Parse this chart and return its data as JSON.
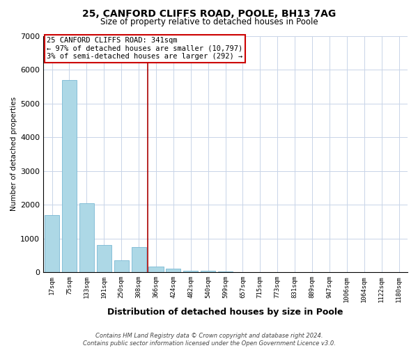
{
  "title1": "25, CANFORD CLIFFS ROAD, POOLE, BH13 7AG",
  "title2": "Size of property relative to detached houses in Poole",
  "xlabel": "Distribution of detached houses by size in Poole",
  "ylabel": "Number of detached properties",
  "categories": [
    "17sqm",
    "75sqm",
    "133sqm",
    "191sqm",
    "250sqm",
    "308sqm",
    "366sqm",
    "424sqm",
    "482sqm",
    "540sqm",
    "599sqm",
    "657sqm",
    "715sqm",
    "773sqm",
    "831sqm",
    "889sqm",
    "947sqm",
    "1006sqm",
    "1064sqm",
    "1122sqm",
    "1180sqm"
  ],
  "values": [
    1700,
    5700,
    2050,
    800,
    350,
    750,
    175,
    100,
    55,
    35,
    20,
    10,
    5,
    2,
    1,
    1,
    0,
    0,
    0,
    0,
    0
  ],
  "bar_color": "#add8e6",
  "bar_edge_color": "#7ab8d4",
  "vline_color": "#aa0000",
  "annotation_line1": "25 CANFORD CLIFFS ROAD: 341sqm",
  "annotation_line2": "← 97% of detached houses are smaller (10,797)",
  "annotation_line3": "3% of semi-detached houses are larger (292) →",
  "annotation_box_color": "#ffffff",
  "annotation_box_edge": "#cc0000",
  "ylim": [
    0,
    7000
  ],
  "yticks": [
    0,
    1000,
    2000,
    3000,
    4000,
    5000,
    6000,
    7000
  ],
  "footer": "Contains HM Land Registry data © Crown copyright and database right 2024.\nContains public sector information licensed under the Open Government Licence v3.0.",
  "background_color": "#ffffff",
  "grid_color": "#c8d4e8",
  "title1_fontsize": 10,
  "title2_fontsize": 8.5
}
